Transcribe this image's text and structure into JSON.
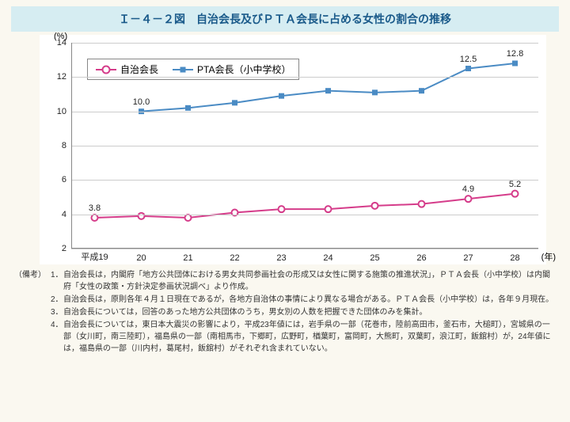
{
  "title": "Ｉ－４－２図　自治会長及びＰＴＡ会長に占める女性の割合の推移",
  "chart": {
    "type": "line",
    "unit_y": "(%)",
    "unit_x": "(年)",
    "ylim": [
      2,
      14
    ],
    "yticks": [
      2,
      4,
      6,
      8,
      10,
      12,
      14
    ],
    "xlabels": [
      "平成19",
      "20",
      "21",
      "22",
      "23",
      "24",
      "25",
      "26",
      "27",
      "28"
    ],
    "grid_color": "#cccccc",
    "background_color": "#ffffff",
    "series": [
      {
        "name": "自治会長",
        "color": "#d53c8a",
        "marker": "circle",
        "line_width": 2,
        "values": [
          3.8,
          3.9,
          3.8,
          4.1,
          4.3,
          4.3,
          4.5,
          4.6,
          4.9,
          5.2
        ],
        "labels": {
          "0": "3.8",
          "8": "4.9",
          "9": "5.2"
        }
      },
      {
        "name": "PTA会長（小中学校）",
        "color": "#4a8bc4",
        "marker": "square",
        "line_width": 2,
        "values": [
          null,
          10.0,
          10.2,
          10.5,
          10.9,
          11.2,
          11.1,
          11.2,
          12.5,
          12.8
        ],
        "labels": {
          "1": "10.0",
          "8": "12.5",
          "9": "12.8"
        }
      }
    ],
    "legend": [
      "自治会長",
      "PTA会長（小中学校）"
    ]
  },
  "notes_prefix": "（備考）",
  "notes": [
    "自治会長は，内閣府「地方公共団体における男女共同参画社会の形成又は女性に関する施策の推進状況」，ＰＴＡ会長（小中学校）は内閣府「女性の政策・方針決定参画状況調べ」より作成。",
    "自治会長は，原則各年４月１日現在であるが，各地方自治体の事情により異なる場合がある。ＰＴＡ会長（小中学校）は，各年９月現在。",
    "自治会長については，回答のあった地方公共団体のうち，男女別の人数を把握できた団体のみを集計。",
    "自治会長については，東日本大震災の影響により，平成23年値には，岩手県の一部（花巻市，陸前高田市，釜石市，大槌町），宮城県の一部（女川町，南三陸町），福島県の一部（南相馬市，下郷町，広野町，楢葉町，富岡町，大熊町，双葉町，浪江町，飯舘村）が，24年値には，福島県の一部（川内村，葛尾村，飯舘村）がそれぞれ含まれていない。"
  ]
}
